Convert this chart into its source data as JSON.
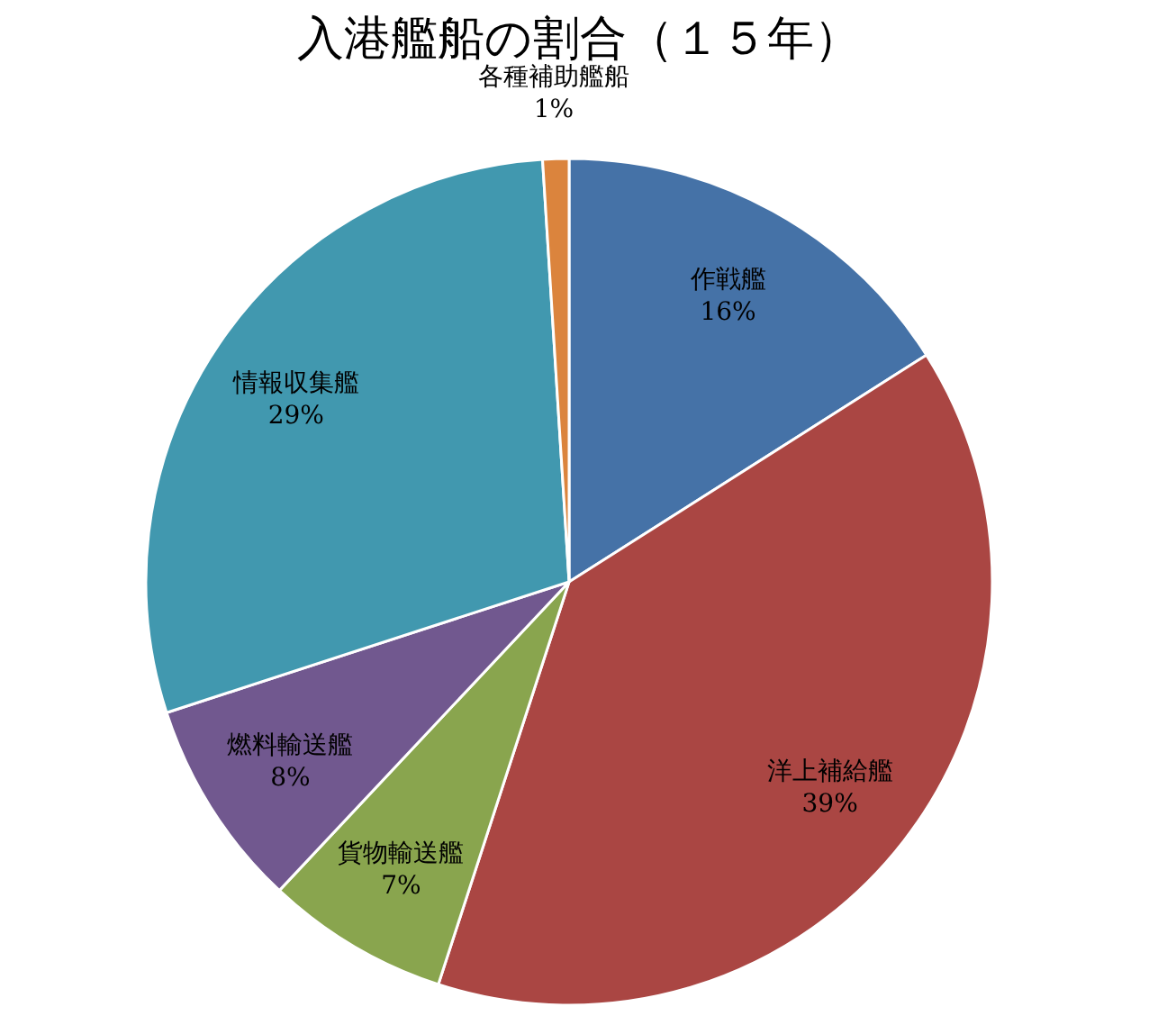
{
  "chart_data": {
    "type": "pie",
    "title": "入港艦船の割合（１５年）",
    "categories": [
      "作戦艦",
      "洋上補給艦",
      "貨物輸送艦",
      "燃料輸送艦",
      "情報収集艦",
      "各種補助艦船"
    ],
    "values": [
      16,
      39,
      7,
      8,
      29,
      1
    ],
    "value_labels": [
      "16%",
      "39%",
      "7%",
      "8%",
      "29%",
      "1%"
    ],
    "colors": [
      "#4572a7",
      "#aa4643",
      "#89a54e",
      "#71588f",
      "#4198af",
      "#db843d"
    ]
  }
}
